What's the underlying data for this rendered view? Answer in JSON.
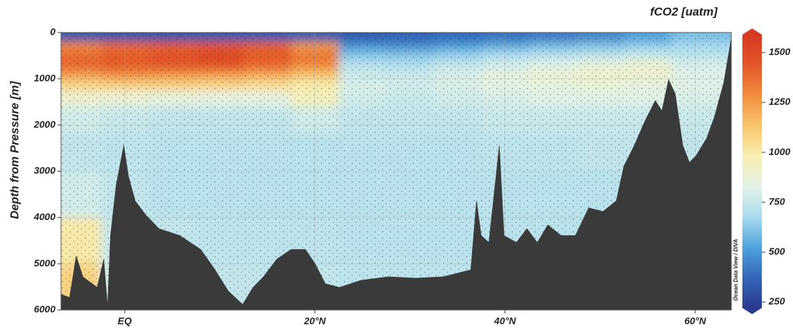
{
  "chart_data": {
    "type": "section",
    "title": "fCO2 [uatm]",
    "y_label": "Depth from Pressure [m]",
    "credit": "Ocean Data View / DIVA",
    "xlim": [
      -6.7,
      63.8
    ],
    "xticks": [
      {
        "value": 0,
        "label": "EQ"
      },
      {
        "value": 20,
        "label": "20°N"
      },
      {
        "value": 40,
        "label": "40°N"
      },
      {
        "value": 60,
        "label": "60°N"
      }
    ],
    "ylim": [
      0,
      6000
    ],
    "yticks": [
      0,
      1000,
      2000,
      3000,
      4000,
      5000,
      6000
    ],
    "y_inverted": true,
    "grid": true,
    "zlim": [
      220,
      1590
    ],
    "zticks": [
      250,
      500,
      750,
      1000,
      1250,
      1500
    ],
    "colors": [
      "#2a3a8e",
      "#3466b8",
      "#4fa3dc",
      "#a9dcef",
      "#e3f2e6",
      "#f7eeb0",
      "#f9c56c",
      "#f08d3d",
      "#e4572a",
      "#d63a24"
    ],
    "field": {
      "x": [
        -5,
        0,
        5,
        10,
        15,
        20,
        25,
        30,
        35,
        40,
        45,
        50,
        55,
        60
      ],
      "depth": [
        100,
        300,
        500,
        700,
        900,
        1100,
        1400,
        1800,
        2500,
        3500,
        4500,
        5500
      ],
      "values": [
        [
          330,
          320,
          320,
          330,
          330,
          340,
          330,
          360,
          380,
          400,
          420,
          450,
          520,
          600
        ],
        [
          1300,
          1380,
          1420,
          1450,
          1400,
          1250,
          500,
          480,
          520,
          560,
          600,
          620,
          650,
          680
        ],
        [
          1380,
          1420,
          1450,
          1500,
          1420,
          1350,
          620,
          620,
          650,
          700,
          720,
          740,
          760,
          720
        ],
        [
          1400,
          1420,
          1450,
          1480,
          1400,
          1300,
          720,
          700,
          740,
          780,
          820,
          860,
          900,
          800
        ],
        [
          1250,
          1300,
          1280,
          1260,
          1220,
          1150,
          760,
          760,
          800,
          850,
          880,
          900,
          900,
          820
        ],
        [
          1080,
          1100,
          1100,
          1080,
          1050,
          1000,
          800,
          780,
          800,
          840,
          860,
          880,
          860,
          820
        ],
        [
          900,
          880,
          860,
          850,
          850,
          950,
          780,
          760,
          780,
          800,
          820,
          820,
          820,
          800
        ],
        [
          780,
          760,
          740,
          740,
          740,
          780,
          740,
          740,
          740,
          760,
          760,
          760,
          760,
          760
        ],
        [
          740,
          730,
          720,
          720,
          720,
          720,
          720,
          720,
          720,
          730,
          730,
          740,
          740,
          740
        ],
        [
          780,
          740,
          720,
          720,
          720,
          720,
          720,
          720,
          720,
          720,
          720,
          720,
          720,
          720
        ],
        [
          1000,
          760,
          740,
          730,
          730,
          730,
          720,
          720,
          720,
          720,
          720,
          720,
          720,
          720
        ],
        [
          1080,
          780,
          750,
          740,
          740,
          740,
          730,
          730,
          730,
          730,
          730,
          730,
          730,
          730
        ]
      ]
    },
    "bottom": {
      "color": "#3a3a3a",
      "x": [
        -6.7,
        -5.8,
        -5.1,
        -4.4,
        -2.9,
        -2.2,
        -1.8,
        -1.5,
        -0.9,
        -0.1,
        0.4,
        1.1,
        2.2,
        3.6,
        5.8,
        8.0,
        9.5,
        10.9,
        12.4,
        13.5,
        14.6,
        16.0,
        17.5,
        19.0,
        20.0,
        21.1,
        22.6,
        24.8,
        27.7,
        30.6,
        33.5,
        36.4,
        37.0,
        37.5,
        38.3,
        39.4,
        39.9,
        41.2,
        42.3,
        43.4,
        44.5,
        45.9,
        47.4,
        48.8,
        50.3,
        51.7,
        52.5,
        53.6,
        54.7,
        55.8,
        56.5,
        57.2,
        57.9,
        58.7,
        59.4,
        60.1,
        61.2,
        62.0,
        63.0,
        63.8
      ],
      "depth": [
        5660,
        5730,
        4830,
        5280,
        5510,
        4900,
        5930,
        4400,
        3300,
        2440,
        3110,
        3640,
        3940,
        4240,
        4390,
        4690,
        5130,
        5590,
        5880,
        5510,
        5280,
        4900,
        4690,
        4690,
        4990,
        5430,
        5510,
        5360,
        5280,
        5310,
        5280,
        5130,
        3640,
        4390,
        4540,
        2440,
        4390,
        4540,
        4240,
        4540,
        4160,
        4390,
        4390,
        3790,
        3870,
        3640,
        2890,
        2440,
        1920,
        1470,
        1690,
        1020,
        1320,
        2440,
        2810,
        2660,
        2290,
        1840,
        1090,
        120
      ]
    }
  }
}
